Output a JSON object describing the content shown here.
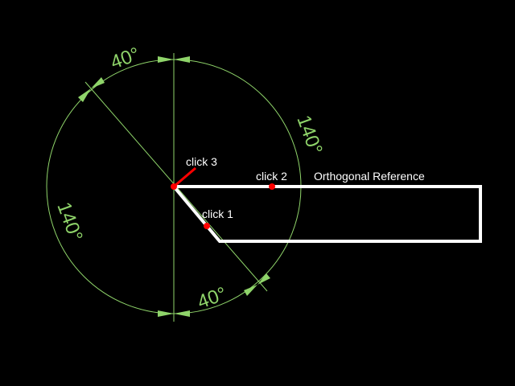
{
  "labels": {
    "click1": "click 1",
    "click2": "click 2",
    "click3": "click 3",
    "reference": "Orthogonal Reference"
  },
  "dimensions": {
    "top_left": "40°",
    "right": "140°",
    "left": "140°",
    "bottom_right": "40°"
  },
  "colors": {
    "background": "#000000",
    "dimension": "#8fd46a",
    "geometry": "#ffffff",
    "clicks": "#ff0000"
  }
}
